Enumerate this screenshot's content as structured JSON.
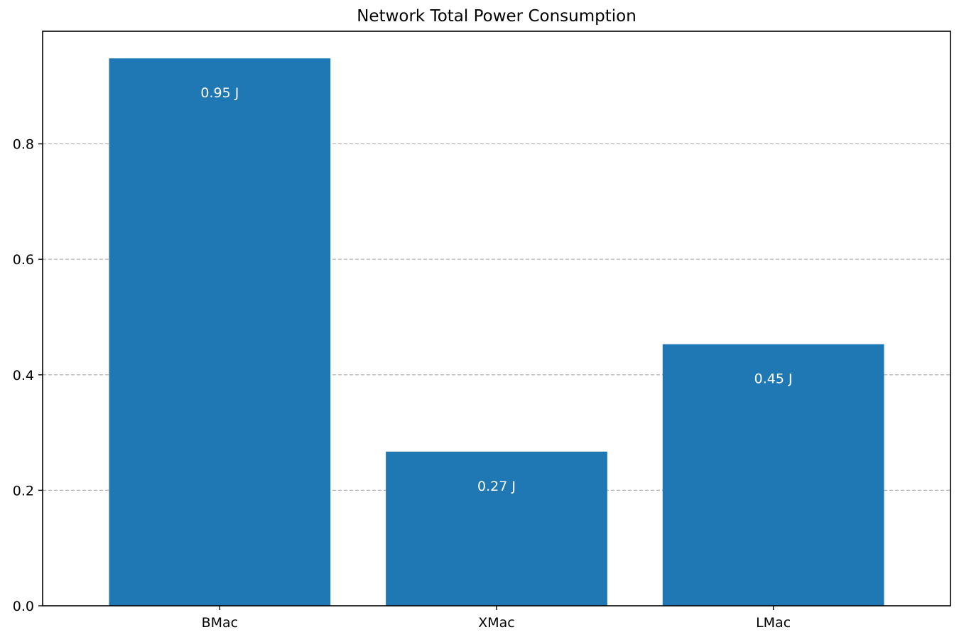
{
  "chart_data": {
    "type": "bar",
    "title": "Network Total Power Consumption",
    "xlabel": "",
    "ylabel": "",
    "categories": [
      "BMac",
      "XMac",
      "LMac"
    ],
    "values": [
      0.948,
      0.267,
      0.453
    ],
    "value_labels": [
      "0.95 J",
      "0.27 J",
      "0.45 J"
    ],
    "ylim": [
      0,
      0.995
    ],
    "yticks": [
      0.0,
      0.2,
      0.4,
      0.6,
      0.8
    ],
    "ytick_labels": [
      "0.0",
      "0.2",
      "0.4",
      "0.6",
      "0.8"
    ],
    "grid": "y-dashed",
    "bar_color": "#1f77b4",
    "label_color": "#ffffff"
  }
}
